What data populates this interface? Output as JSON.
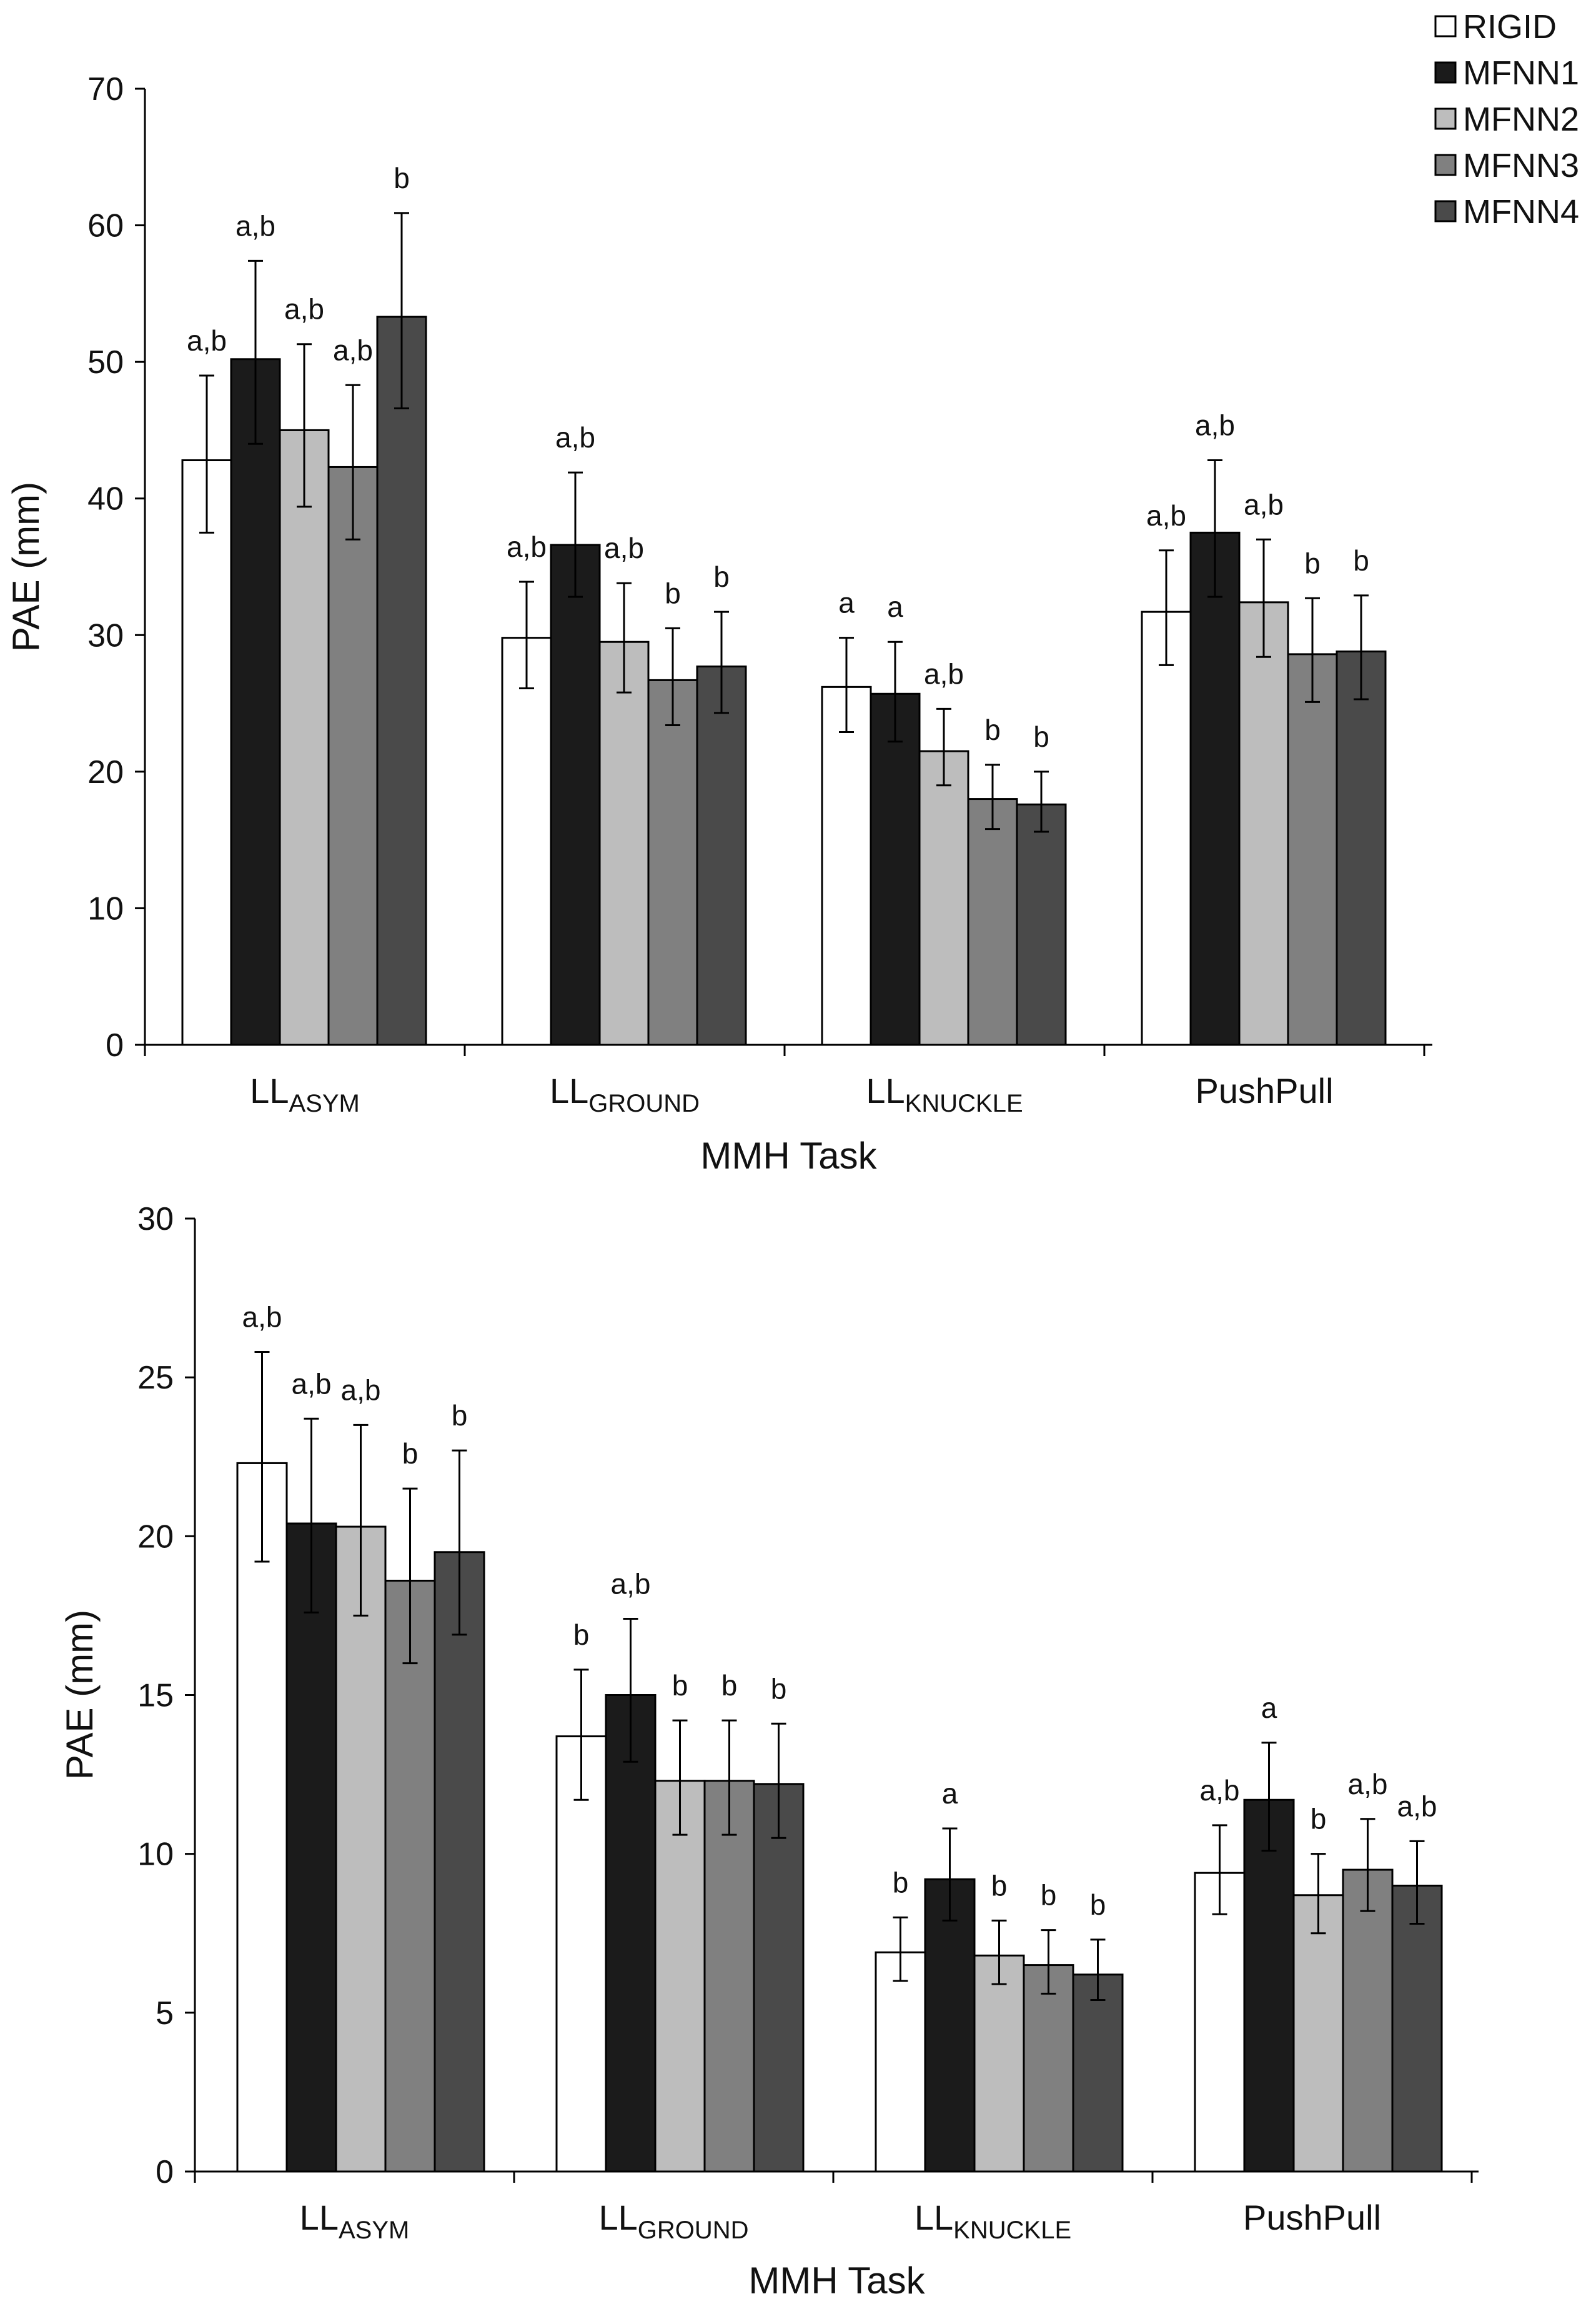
{
  "series_names": [
    "RIGID",
    "MFNN1",
    "MFNN2",
    "MFNN3",
    "MFNN4"
  ],
  "series_colors": [
    "#ffffff",
    "#1b1b1b",
    "#bdbdbd",
    "#808080",
    "#4a4a4a"
  ],
  "edge_color": "#000000",
  "chart_data": [
    {
      "type": "bar",
      "title": "",
      "ylabel": "PAE (mm)",
      "xlabel": "MMH Task",
      "ylim": [
        0,
        70
      ],
      "yticks": [
        0,
        10,
        20,
        30,
        40,
        50,
        60,
        70
      ],
      "yticklabels": [
        "0",
        "10",
        "20",
        "30",
        "40",
        "50",
        "60",
        "70"
      ],
      "categories": [
        {
          "main": "LL",
          "sub": "ASYM"
        },
        {
          "main": "LL",
          "sub": "GROUND"
        },
        {
          "main": "LL",
          "sub": "KNUCKLE"
        },
        {
          "main": "PushPull",
          "sub": ""
        }
      ],
      "legend": "top-right",
      "series": [
        {
          "name": "RIGID",
          "values": [
            42.8,
            29.8,
            26.2,
            31.7
          ],
          "err_low": [
            37.5,
            26.1,
            22.9,
            27.8
          ],
          "err_high": [
            49.0,
            33.9,
            29.8,
            36.2
          ],
          "labels": [
            "a,b",
            "a,b",
            "a",
            "a,b"
          ]
        },
        {
          "name": "MFNN1",
          "values": [
            50.2,
            36.6,
            25.7,
            37.5
          ],
          "err_low": [
            44.0,
            32.8,
            22.2,
            32.8
          ],
          "err_high": [
            57.4,
            41.9,
            29.5,
            42.8
          ],
          "labels": [
            "a,b",
            "a,b",
            "a",
            "a,b"
          ]
        },
        {
          "name": "MFNN2",
          "values": [
            45.0,
            29.5,
            21.5,
            32.4
          ],
          "err_low": [
            39.4,
            25.8,
            19.0,
            28.4
          ],
          "err_high": [
            51.3,
            33.8,
            24.6,
            37.0
          ],
          "labels": [
            "a,b",
            "a,b",
            "a,b",
            "a,b"
          ]
        },
        {
          "name": "MFNN3",
          "values": [
            42.3,
            26.7,
            18.0,
            28.6
          ],
          "err_low": [
            37.0,
            23.4,
            15.8,
            25.1
          ],
          "err_high": [
            48.3,
            30.5,
            20.5,
            32.7
          ],
          "labels": [
            "a,b",
            "b",
            "b",
            "b"
          ]
        },
        {
          "name": "MFNN4",
          "values": [
            53.3,
            27.7,
            17.6,
            28.8
          ],
          "err_low": [
            46.6,
            24.3,
            15.6,
            25.3
          ],
          "err_high": [
            60.9,
            31.7,
            20.0,
            32.9
          ],
          "labels": [
            "b",
            "b",
            "b",
            "b"
          ]
        }
      ]
    },
    {
      "type": "bar",
      "title": "",
      "ylabel": "PAE (mm)",
      "xlabel": "MMH Task",
      "ylim": [
        0,
        30
      ],
      "yticks": [
        0,
        5,
        10,
        15,
        20,
        25,
        30
      ],
      "yticklabels": [
        "0",
        "5",
        "10",
        "15",
        "20",
        "25",
        "30"
      ],
      "categories": [
        {
          "main": "LL",
          "sub": "ASYM"
        },
        {
          "main": "LL",
          "sub": "GROUND"
        },
        {
          "main": "LL",
          "sub": "KNUCKLE"
        },
        {
          "main": "PushPull",
          "sub": ""
        }
      ],
      "legend": "none",
      "series": [
        {
          "name": "RIGID",
          "values": [
            22.3,
            13.7,
            6.9,
            9.4
          ],
          "err_low": [
            19.2,
            11.7,
            6.0,
            8.1
          ],
          "err_high": [
            25.8,
            15.8,
            8.0,
            10.9
          ],
          "labels": [
            "a,b",
            "b",
            "b",
            "a,b"
          ]
        },
        {
          "name": "MFNN1",
          "values": [
            20.4,
            15.0,
            9.2,
            11.7
          ],
          "err_low": [
            17.6,
            12.9,
            7.9,
            10.1
          ],
          "err_high": [
            23.7,
            17.4,
            10.8,
            13.5
          ],
          "labels": [
            "a,b",
            "a,b",
            "a",
            "a"
          ]
        },
        {
          "name": "MFNN2",
          "values": [
            20.3,
            12.3,
            6.8,
            8.7
          ],
          "err_low": [
            17.5,
            10.6,
            5.9,
            7.5
          ],
          "err_high": [
            23.5,
            14.2,
            7.9,
            10.0
          ],
          "labels": [
            "a,b",
            "b",
            "b",
            "b"
          ]
        },
        {
          "name": "MFNN3",
          "values": [
            18.6,
            12.3,
            6.5,
            9.5
          ],
          "err_low": [
            16.0,
            10.6,
            5.6,
            8.2
          ],
          "err_high": [
            21.5,
            14.2,
            7.6,
            11.1
          ],
          "labels": [
            "b",
            "b",
            "b",
            "a,b"
          ]
        },
        {
          "name": "MFNN4",
          "values": [
            19.5,
            12.2,
            6.2,
            9.0
          ],
          "err_low": [
            16.9,
            10.5,
            5.4,
            7.8
          ],
          "err_high": [
            22.7,
            14.1,
            7.3,
            10.4
          ],
          "labels": [
            "b",
            "b",
            "b",
            "a,b"
          ]
        }
      ]
    }
  ]
}
